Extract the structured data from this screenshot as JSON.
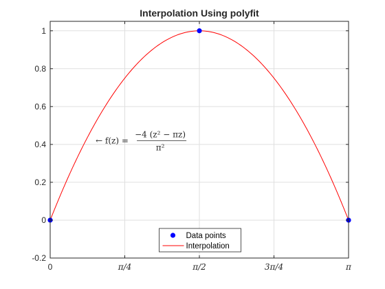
{
  "chart_data": {
    "type": "line",
    "title": "Interpolation Using polyfit",
    "xlabel": "",
    "ylabel": "",
    "xlim": [
      0,
      3.14159265
    ],
    "ylim": [
      -0.2,
      1.05
    ],
    "x_ticks": [
      {
        "value": 0,
        "label": "0"
      },
      {
        "value": 0.78539816,
        "label": "π/4"
      },
      {
        "value": 1.57079633,
        "label": "π/2"
      },
      {
        "value": 2.35619449,
        "label": "3π/4"
      },
      {
        "value": 3.14159265,
        "label": "π"
      }
    ],
    "y_ticks": [
      {
        "value": -0.2,
        "label": "-0.2"
      },
      {
        "value": 0,
        "label": "0"
      },
      {
        "value": 0.2,
        "label": "0.2"
      },
      {
        "value": 0.4,
        "label": "0.4"
      },
      {
        "value": 0.6,
        "label": "0.6"
      },
      {
        "value": 0.8,
        "label": "0.8"
      },
      {
        "value": 1,
        "label": "1"
      }
    ],
    "grid": true,
    "series": [
      {
        "name": "Data points",
        "kind": "scatter",
        "color": "#0000ff",
        "x": [
          0,
          1.57079633,
          3.14159265
        ],
        "y": [
          0,
          1,
          0
        ]
      },
      {
        "name": "Interpolation",
        "kind": "line",
        "color": "#ff0000",
        "function": "quadratic",
        "x": [
          0,
          3.14159265
        ],
        "y": [
          0,
          0
        ]
      }
    ],
    "legend": {
      "placement": "bottom-center",
      "entries": [
        "Data points",
        "Interpolation"
      ]
    },
    "annotation": {
      "x": 0.5,
      "y": 0.42,
      "prefix": "← f(z) =",
      "numerator": "−4 (z² − πz)",
      "denominator": "π²"
    }
  }
}
